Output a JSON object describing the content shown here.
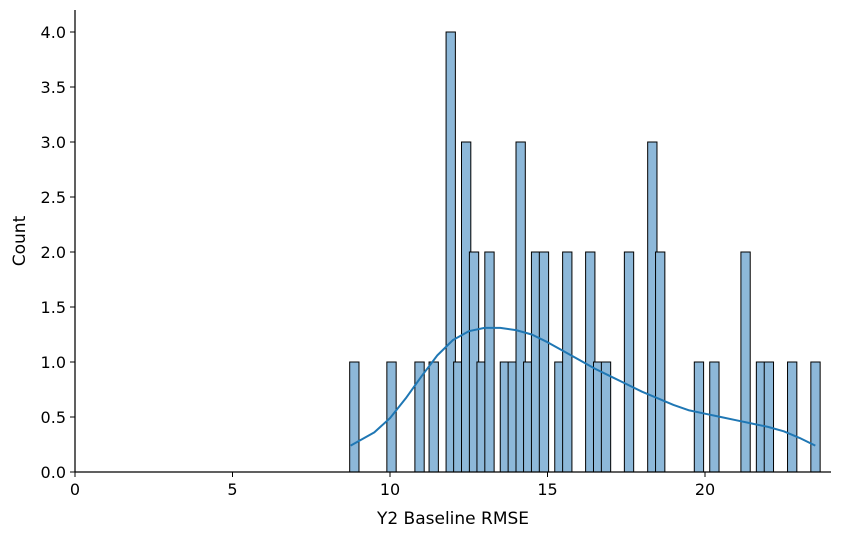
{
  "chart_data": {
    "type": "bar",
    "subtype": "histogram with kde",
    "title": "",
    "xlabel": "Y2 Baseline RMSE",
    "ylabel": "Count",
    "xlim": [
      0,
      24
    ],
    "ylim": [
      0,
      4.2
    ],
    "x_ticks": [
      0,
      5,
      10,
      15,
      20
    ],
    "x_tick_labels": [
      "0",
      "5",
      "10",
      "15",
      "20"
    ],
    "y_ticks": [
      0.0,
      0.5,
      1.0,
      1.5,
      2.0,
      2.5,
      3.0,
      3.5,
      4.0
    ],
    "y_tick_labels": [
      "0.0",
      "0.5",
      "1.0",
      "1.5",
      "2.0",
      "2.5",
      "3.0",
      "3.5",
      "4.0"
    ],
    "grid": false,
    "bin_width": 0.2955,
    "bins": [
      {
        "x": 8.72,
        "count": 1
      },
      {
        "x": 9.9,
        "count": 1
      },
      {
        "x": 10.79,
        "count": 1
      },
      {
        "x": 11.24,
        "count": 1
      },
      {
        "x": 11.78,
        "count": 4
      },
      {
        "x": 12.02,
        "count": 1
      },
      {
        "x": 12.27,
        "count": 3
      },
      {
        "x": 12.52,
        "count": 2
      },
      {
        "x": 12.76,
        "count": 1
      },
      {
        "x": 13.01,
        "count": 2
      },
      {
        "x": 13.5,
        "count": 1
      },
      {
        "x": 13.75,
        "count": 1
      },
      {
        "x": 14.0,
        "count": 3
      },
      {
        "x": 14.24,
        "count": 1
      },
      {
        "x": 14.49,
        "count": 2
      },
      {
        "x": 14.74,
        "count": 2
      },
      {
        "x": 15.23,
        "count": 1
      },
      {
        "x": 15.48,
        "count": 2
      },
      {
        "x": 16.21,
        "count": 2
      },
      {
        "x": 16.46,
        "count": 1
      },
      {
        "x": 16.71,
        "count": 1
      },
      {
        "x": 17.44,
        "count": 2
      },
      {
        "x": 18.18,
        "count": 3
      },
      {
        "x": 18.43,
        "count": 2
      },
      {
        "x": 19.66,
        "count": 1
      },
      {
        "x": 20.15,
        "count": 1
      },
      {
        "x": 21.14,
        "count": 2
      },
      {
        "x": 21.63,
        "count": 1
      },
      {
        "x": 21.88,
        "count": 1
      },
      {
        "x": 22.62,
        "count": 1
      },
      {
        "x": 23.36,
        "count": 1
      }
    ],
    "kde": {
      "x": [
        8.75,
        9.5,
        10.0,
        10.5,
        11.0,
        11.5,
        12.0,
        12.5,
        13.0,
        13.5,
        14.0,
        14.5,
        15.0,
        15.5,
        16.0,
        16.5,
        17.0,
        17.5,
        18.0,
        18.5,
        19.0,
        19.5,
        20.0,
        20.5,
        21.0,
        21.5,
        22.0,
        22.5,
        23.0,
        23.5
      ],
      "y": [
        0.24,
        0.36,
        0.49,
        0.67,
        0.87,
        1.06,
        1.2,
        1.28,
        1.31,
        1.31,
        1.29,
        1.25,
        1.18,
        1.1,
        1.02,
        0.94,
        0.87,
        0.8,
        0.73,
        0.67,
        0.61,
        0.56,
        0.53,
        0.5,
        0.47,
        0.44,
        0.41,
        0.37,
        0.31,
        0.24
      ]
    },
    "colors": {
      "bar_fill": "#8db8d9",
      "bar_edge": "#000000",
      "kde_line": "#1f77b4"
    }
  }
}
